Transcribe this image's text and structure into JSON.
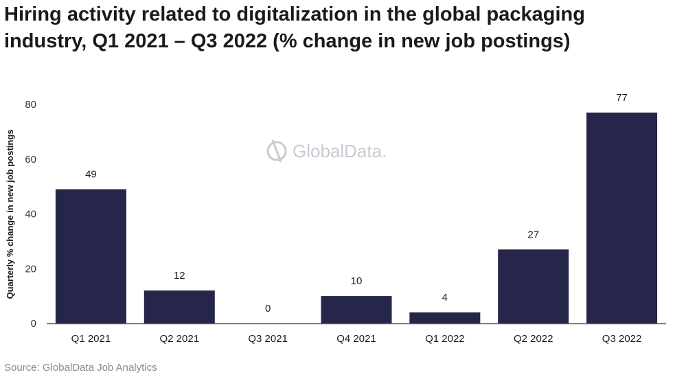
{
  "chart_data": {
    "type": "bar",
    "title": "Hiring activity related to digitalization in the global packaging industry, Q1 2021 – Q3 2022 (% change in new job postings)",
    "xlabel": "",
    "ylabel": "Quarterly % change in new job postings",
    "categories": [
      "Q1 2021",
      "Q2 2021",
      "Q3 2021",
      "Q4 2021",
      "Q1 2022",
      "Q2 2022",
      "Q3 2022"
    ],
    "values": [
      49,
      12,
      0,
      10,
      4,
      27,
      77
    ],
    "ylim": [
      0,
      80
    ],
    "yticks": [
      0,
      20,
      40,
      60,
      80
    ],
    "grid": false,
    "bar_color": "#252649",
    "axis_color": "#5a5a7a"
  },
  "watermark": "GlobalData.",
  "source": "Source: GlobalData Job Analytics"
}
